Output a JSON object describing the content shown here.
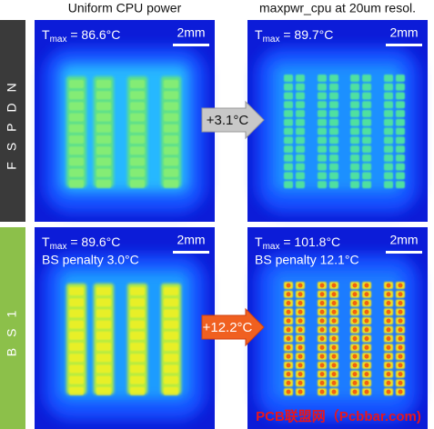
{
  "columns": [
    "Uniform CPU power",
    "maxpwr_cpu at 20um resol."
  ],
  "rows": [
    {
      "label": "FSPDN",
      "arrow": "+3.1°C",
      "panels": [
        {
          "symbol": "T",
          "subscript": "max",
          "value": " = 86.6°C",
          "scale_bar": "2mm"
        },
        {
          "symbol": "T",
          "subscript": "max",
          "value": " = 89.7°C",
          "scale_bar": "2mm"
        }
      ]
    },
    {
      "label": "BS1",
      "arrow": "+12.2°C",
      "panels": [
        {
          "symbol": "T",
          "subscript": "max",
          "value": " = 89.6°C",
          "penalty": "BS penalty 3.0°C",
          "scale_bar": "2mm"
        },
        {
          "symbol": "T",
          "subscript": "max",
          "value": " = 101.8°C",
          "penalty": "BS penalty 12.1°C",
          "scale_bar": "2mm"
        }
      ]
    }
  ],
  "watermark": "PCB联盟网（Pcbbar.com)"
}
